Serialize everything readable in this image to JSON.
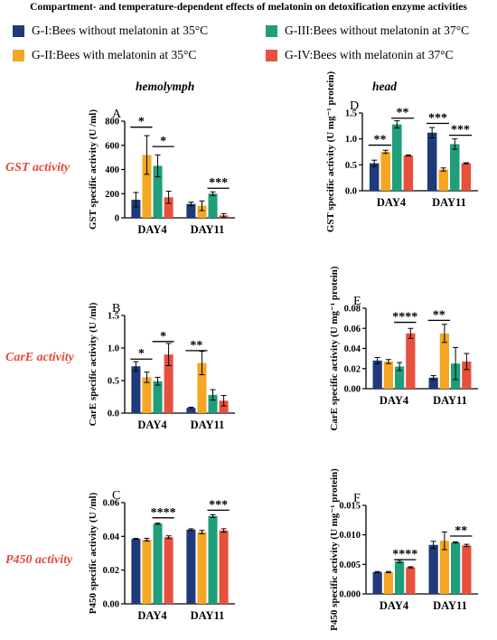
{
  "title": "Compartment- and temperature-dependent effects of melatonin on detoxification enzyme activities",
  "legend": [
    {
      "label": "G-I:Bees without melatonin at 35°C",
      "color": "#1f3a7a"
    },
    {
      "label": "G-II:Bees with melatonin at 35°C",
      "color": "#f5a623"
    },
    {
      "label": "G-III:Bees without melatonin at 37°C",
      "color": "#1f9e7a"
    },
    {
      "label": "G-IV:Bees with melatonin at 37°C",
      "color": "#e8503e"
    }
  ],
  "column_headers": {
    "left": "hemolymph",
    "right": "head"
  },
  "row_labels": [
    "GST activity",
    "CarE activity",
    "P450 activity"
  ],
  "chart_data": [
    {
      "type": "bar",
      "panel": "A",
      "categories": [
        "DAY4",
        "DAY11"
      ],
      "ylabel": "GST specific activity (U /ml)",
      "ylim": [
        0,
        800
      ],
      "yticks": [
        0,
        200,
        400,
        600,
        800
      ],
      "yticklabels": [
        "0",
        "200",
        "400",
        "600",
        "800"
      ],
      "series": [
        {
          "name": "G-I:Bees without melatonin at 35°C",
          "values": [
            150,
            115
          ],
          "errors": [
            60,
            15
          ]
        },
        {
          "name": "G-II:Bees with melatonin at 35°C",
          "values": [
            520,
            100
          ],
          "errors": [
            160,
            40
          ]
        },
        {
          "name": "G-III:Bees without melatonin at 37°C",
          "values": [
            430,
            200
          ],
          "errors": [
            90,
            15
          ]
        },
        {
          "name": "G-IV:Bees with melatonin at 37°C",
          "values": [
            170,
            20
          ],
          "errors": [
            50,
            15
          ]
        }
      ],
      "annotations": [
        {
          "text": "*",
          "category": 0,
          "from": 0,
          "to": 1,
          "y": 750
        },
        {
          "text": "*",
          "category": 0,
          "from": 2,
          "to": 3,
          "y": 590
        },
        {
          "text": "***",
          "category": 1,
          "from": 2,
          "to": 3,
          "y": 245
        }
      ]
    },
    {
      "type": "bar",
      "panel": "D",
      "categories": [
        "DAY4",
        "DAY11"
      ],
      "ylabel": "GST specific activity (U mg⁻¹ protein)",
      "ylim": [
        0,
        1.5
      ],
      "yticks": [
        0,
        0.5,
        1,
        1.5
      ],
      "yticklabels": [
        "0.0",
        "0.5",
        "1.0",
        "1.5"
      ],
      "series": [
        {
          "name": "G-I:Bees without melatonin at 35°C",
          "values": [
            0.53,
            1.12
          ],
          "errors": [
            0.06,
            0.1
          ]
        },
        {
          "name": "G-II:Bees with melatonin at 35°C",
          "values": [
            0.75,
            0.41
          ],
          "errors": [
            0.03,
            0.03
          ]
        },
        {
          "name": "G-III:Bees without melatonin at 37°C",
          "values": [
            1.28,
            0.9
          ],
          "errors": [
            0.07,
            0.1
          ]
        },
        {
          "name": "G-IV:Bees with melatonin at 37°C",
          "values": [
            0.68,
            0.53
          ],
          "errors": [
            0.01,
            0.01
          ]
        }
      ],
      "annotations": [
        {
          "text": "**",
          "category": 0,
          "from": 0,
          "to": 1,
          "y": 0.88
        },
        {
          "text": "**",
          "category": 0,
          "from": 2,
          "to": 3,
          "y": 1.4
        },
        {
          "text": "***",
          "category": 1,
          "from": 0,
          "to": 1,
          "y": 1.3
        },
        {
          "text": "***",
          "category": 1,
          "from": 2,
          "to": 3,
          "y": 1.07
        }
      ]
    },
    {
      "type": "bar",
      "panel": "B",
      "categories": [
        "DAY4",
        "DAY11"
      ],
      "ylabel": "CarE specific activity (U /ml)",
      "ylim": [
        0,
        1.5
      ],
      "yticks": [
        0,
        0.5,
        1,
        1.5
      ],
      "yticklabels": [
        "0.0",
        "0.5",
        "1.0",
        "1.5"
      ],
      "series": [
        {
          "name": "G-I:Bees without melatonin at 35°C",
          "values": [
            0.72,
            0.08
          ],
          "errors": [
            0.07,
            0.01
          ]
        },
        {
          "name": "G-II:Bees with melatonin at 35°C",
          "values": [
            0.55,
            0.77
          ],
          "errors": [
            0.08,
            0.18
          ]
        },
        {
          "name": "G-III:Bees without melatonin at 37°C",
          "values": [
            0.49,
            0.28
          ],
          "errors": [
            0.06,
            0.08
          ]
        },
        {
          "name": "G-IV:Bees with melatonin at 37°C",
          "values": [
            0.9,
            0.19
          ],
          "errors": [
            0.17,
            0.08
          ]
        }
      ],
      "annotations": [
        {
          "text": "*",
          "category": 0,
          "from": 0,
          "to": 1,
          "y": 0.83
        },
        {
          "text": "*",
          "category": 0,
          "from": 2,
          "to": 3,
          "y": 1.1
        },
        {
          "text": "**",
          "category": 1,
          "from": 0,
          "to": 1,
          "y": 0.96
        }
      ]
    },
    {
      "type": "bar",
      "panel": "E",
      "categories": [
        "DAY4",
        "DAY11"
      ],
      "ylabel": "CarE specific activity (U mg⁻¹ protein)",
      "ylim": [
        0,
        0.08
      ],
      "yticks": [
        0,
        0.02,
        0.04,
        0.06,
        0.08
      ],
      "yticklabels": [
        "0.00",
        "0.02",
        "0.04",
        "0.06",
        "0.08"
      ],
      "series": [
        {
          "name": "G-I:Bees without melatonin at 35°C",
          "values": [
            0.028,
            0.011
          ],
          "errors": [
            0.003,
            0.002
          ]
        },
        {
          "name": "G-II:Bees with melatonin at 35°C",
          "values": [
            0.027,
            0.055
          ],
          "errors": [
            0.002,
            0.009
          ]
        },
        {
          "name": "G-III:Bees without melatonin at 37°C",
          "values": [
            0.022,
            0.025
          ],
          "errors": [
            0.004,
            0.016
          ]
        },
        {
          "name": "G-IV:Bees with melatonin at 37°C",
          "values": [
            0.055,
            0.027
          ],
          "errors": [
            0.005,
            0.008
          ]
        }
      ],
      "annotations": [
        {
          "text": "****",
          "category": 0,
          "from": 2,
          "to": 3,
          "y": 0.066
        },
        {
          "text": "**",
          "category": 1,
          "from": 0,
          "to": 1,
          "y": 0.068
        }
      ]
    },
    {
      "type": "bar",
      "panel": "C",
      "categories": [
        "DAY4",
        "DAY11"
      ],
      "ylabel": "P450 specific activity (U /ml)",
      "ylim": [
        0,
        0.06
      ],
      "yticks": [
        0,
        0.02,
        0.04,
        0.06
      ],
      "yticklabels": [
        "0.00",
        "0.02",
        "0.04",
        "0.06"
      ],
      "series": [
        {
          "name": "G-I:Bees without melatonin at 35°C",
          "values": [
            0.0385,
            0.044
          ],
          "errors": [
            0.0003,
            0.0005
          ]
        },
        {
          "name": "G-II:Bees with melatonin at 35°C",
          "values": [
            0.038,
            0.0425
          ],
          "errors": [
            0.0008,
            0.001
          ]
        },
        {
          "name": "G-III:Bees without melatonin at 37°C",
          "values": [
            0.0475,
            0.052
          ],
          "errors": [
            0.0003,
            0.0008
          ]
        },
        {
          "name": "G-IV:Bees with melatonin at 37°C",
          "values": [
            0.0395,
            0.0435
          ],
          "errors": [
            0.0008,
            0.001
          ]
        }
      ],
      "annotations": [
        {
          "text": "****",
          "category": 0,
          "from": 2,
          "to": 3,
          "y": 0.051
        },
        {
          "text": "***",
          "category": 1,
          "from": 2,
          "to": 3,
          "y": 0.0555
        }
      ]
    },
    {
      "type": "bar",
      "panel": "F",
      "categories": [
        "DAY4",
        "DAY11"
      ],
      "ylabel": "P450 specific activity (U mg⁻¹ protein)",
      "ylim": [
        0,
        0.015
      ],
      "yticks": [
        0,
        0.005,
        0.01,
        0.015
      ],
      "yticklabels": [
        "0.000",
        "0.005",
        "0.010",
        "0.015"
      ],
      "series": [
        {
          "name": "G-I:Bees without melatonin at 35°C",
          "values": [
            0.0037,
            0.0083
          ],
          "errors": [
            0.0001,
            0.0006
          ]
        },
        {
          "name": "G-II:Bees with melatonin at 35°C",
          "values": [
            0.0037,
            0.009
          ],
          "errors": [
            0.0001,
            0.0015
          ]
        },
        {
          "name": "G-III:Bees without melatonin at 37°C",
          "values": [
            0.0055,
            0.0087
          ],
          "errors": [
            0.0002,
            0.0001
          ]
        },
        {
          "name": "G-IV:Bees with melatonin at 37°C",
          "values": [
            0.0045,
            0.0082
          ],
          "errors": [
            0.0001,
            0.0002
          ]
        }
      ],
      "annotations": [
        {
          "text": "****",
          "category": 0,
          "from": 2,
          "to": 3,
          "y": 0.0058
        },
        {
          "text": "**",
          "category": 1,
          "from": 2,
          "to": 3,
          "y": 0.0098
        }
      ]
    }
  ]
}
